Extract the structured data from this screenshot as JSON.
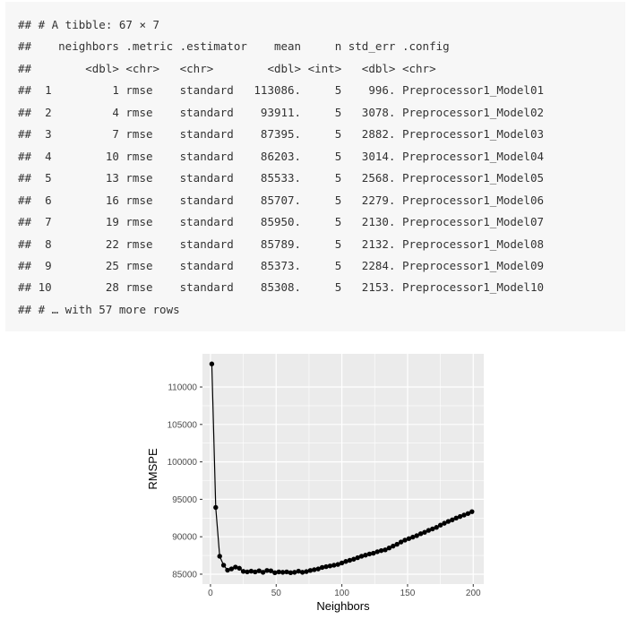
{
  "console": {
    "lines": [
      "## # A tibble: 67 × 7",
      "##    neighbors .metric .estimator    mean     n std_err .config",
      "##        <dbl> <chr>   <chr>        <dbl> <int>   <dbl> <chr>",
      "##  1         1 rmse    standard   113086.     5    996. Preprocessor1_Model01",
      "##  2         4 rmse    standard    93911.     5   3078. Preprocessor1_Model02",
      "##  3         7 rmse    standard    87395.     5   2882. Preprocessor1_Model03",
      "##  4        10 rmse    standard    86203.     5   3014. Preprocessor1_Model04",
      "##  5        13 rmse    standard    85533.     5   2568. Preprocessor1_Model05",
      "##  6        16 rmse    standard    85707.     5   2279. Preprocessor1_Model06",
      "##  7        19 rmse    standard    85950.     5   2130. Preprocessor1_Model07",
      "##  8        22 rmse    standard    85789.     5   2132. Preprocessor1_Model08",
      "##  9        25 rmse    standard    85373.     5   2284. Preprocessor1_Model09",
      "## 10        28 rmse    standard    85308.     5   2153. Preprocessor1_Model10",
      "## # … with 57 more rows"
    ]
  },
  "chart_data": {
    "type": "line",
    "x_label": "Neighbors",
    "y_label": "RMSPE",
    "x": [
      1,
      4,
      7,
      10,
      13,
      16,
      19,
      22,
      25,
      28,
      31,
      34,
      37,
      40,
      43,
      46,
      49,
      52,
      55,
      58,
      61,
      64,
      67,
      70,
      73,
      76,
      79,
      82,
      85,
      88,
      91,
      94,
      97,
      100,
      103,
      106,
      109,
      112,
      115,
      118,
      121,
      124,
      127,
      130,
      133,
      136,
      139,
      142,
      145,
      148,
      151,
      154,
      157,
      160,
      163,
      166,
      169,
      172,
      175,
      178,
      181,
      184,
      187,
      190,
      193,
      196,
      199
    ],
    "series": [
      {
        "color": "#000000",
        "values": [
          113086,
          93911,
          87395,
          86203,
          85533,
          85707,
          85950,
          85789,
          85373,
          85308,
          85400,
          85300,
          85450,
          85250,
          85500,
          85450,
          85200,
          85300,
          85250,
          85300,
          85200,
          85250,
          85400,
          85250,
          85350,
          85500,
          85600,
          85700,
          85900,
          86000,
          86100,
          86200,
          86300,
          86500,
          86700,
          86850,
          87000,
          87200,
          87400,
          87550,
          87700,
          87800,
          88000,
          88150,
          88250,
          88500,
          88750,
          89000,
          89300,
          89550,
          89750,
          89950,
          90150,
          90400,
          90600,
          90850,
          91050,
          91250,
          91550,
          91800,
          92050,
          92250,
          92500,
          92700,
          92900,
          93100,
          93350
        ]
      }
    ],
    "xlim": [
      -6.1,
      208
    ],
    "xticks": [
      0,
      50,
      100,
      150,
      200
    ],
    "ylim": [
      83680,
      114430
    ],
    "yticks": [
      85000,
      90000,
      95000,
      100000,
      105000,
      110000
    ],
    "grid": true,
    "panel_color": "#ebebeb"
  }
}
